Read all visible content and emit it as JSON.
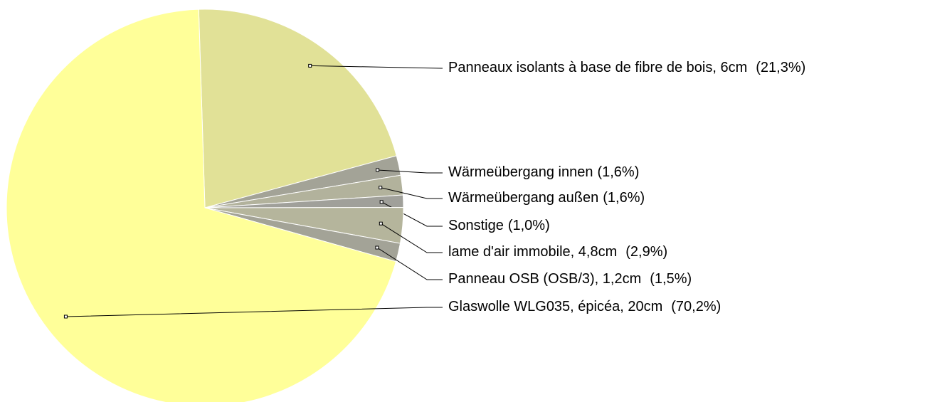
{
  "chart_data": {
    "type": "pie",
    "categories": [
      "Panneaux isolants à base de fibre de bois, 6cm",
      "Wärmeübergang innen",
      "Wärmeübergang außen",
      "Sonstige",
      "lame d'air immobile, 4,8cm",
      "Panneau OSB (OSB/3), 1,2cm",
      "Glaswolle WLG035, épicéa, 20cm"
    ],
    "values": [
      21.3,
      1.6,
      1.6,
      1.0,
      2.9,
      1.5,
      70.2
    ],
    "value_labels": [
      "(21,3%)",
      "(1,6%)",
      "(1,6%)",
      "(1,0%)",
      "(2,9%)",
      "(1,5%)",
      "(70,2%)"
    ],
    "colors": [
      "#e1e197",
      "#a3a397",
      "#b2b29c",
      "#a0a09a",
      "#b5b59c",
      "#a3a397",
      "#ffff99"
    ]
  }
}
